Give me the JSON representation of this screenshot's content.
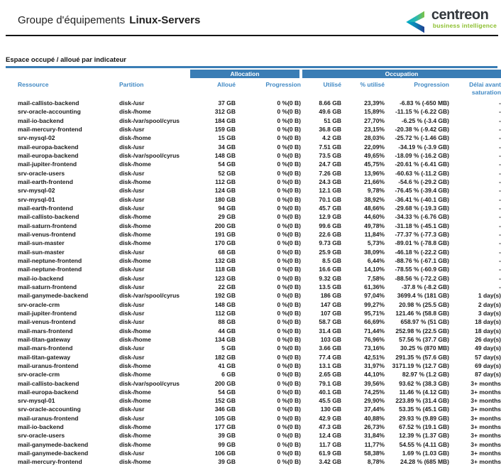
{
  "header": {
    "title_prefix": "Groupe d'équipements",
    "title_group": "Linux-Servers",
    "logo": {
      "brand": "centreon",
      "subtitle": "business intelligence"
    }
  },
  "section": {
    "title": "Espace occupé / alloué par indicateur"
  },
  "colors": {
    "header_bar_blue": "#3a7db5",
    "column_header_blue": "#4189c4",
    "logo_green": "#8cbf2f",
    "logo_teal": "#00aec7",
    "logo_navy": "#1f3f8f",
    "body_text": "#1b1b1b"
  },
  "table": {
    "group_headers": {
      "allocation": "Allocation",
      "occupation": "Occupation"
    },
    "columns": [
      "Ressource",
      "Partition",
      "Alloué",
      "Progression",
      "Utilisé",
      "% utilisé",
      "Progression",
      "Délai avant saturation"
    ],
    "column_keys": [
      "resource",
      "partition",
      "allocated",
      "allocation-progression",
      "used",
      "used-percent",
      "occupation-progression",
      "saturation-delay"
    ],
    "rows": [
      [
        "mail-callisto-backend",
        "disk-/usr",
        "37 GB",
        "0 %(0 B)",
        "8.66 GB",
        "23,39%",
        "-6.83 % (-650 MB)",
        "-"
      ],
      [
        "srv-oracle-accounting",
        "disk-/home",
        "312 GB",
        "0 %(0 B)",
        "49.6 GB",
        "15,89%",
        "-11.15 % (-6.22 GB)",
        "-"
      ],
      [
        "mail-io-backend",
        "disk-/var/spool/cyrus",
        "184 GB",
        "0 %(0 B)",
        "51 GB",
        "27,70%",
        "-6.25 % (-3.4 GB)",
        "-"
      ],
      [
        "mail-mercury-frontend",
        "disk-/usr",
        "159 GB",
        "0 %(0 B)",
        "36.8 GB",
        "23,15%",
        "-20.38 % (-9.42 GB)",
        "-"
      ],
      [
        "srv-mysql-02",
        "disk-/home",
        "15 GB",
        "0 %(0 B)",
        "4.2 GB",
        "28,03%",
        "-25.72 % (-1.46 GB)",
        "-"
      ],
      [
        "mail-europa-backend",
        "disk-/usr",
        "34 GB",
        "0 %(0 B)",
        "7.51 GB",
        "22,09%",
        "-34.19 % (-3.9 GB)",
        "-"
      ],
      [
        "mail-europa-backend",
        "disk-/var/spool/cyrus",
        "148 GB",
        "0 %(0 B)",
        "73.5 GB",
        "49,65%",
        "-18.09 % (-16.2 GB)",
        "-"
      ],
      [
        "mail-jupiter-frontend",
        "disk-/home",
        "54 GB",
        "0 %(0 B)",
        "24.7 GB",
        "45,75%",
        "-20.61 % (-6.41 GB)",
        "-"
      ],
      [
        "srv-oracle-users",
        "disk-/usr",
        "52 GB",
        "0 %(0 B)",
        "7.26 GB",
        "13,96%",
        "-60.63 % (-11.2 GB)",
        "-"
      ],
      [
        "mail-earth-frontend",
        "disk-/home",
        "112 GB",
        "0 %(0 B)",
        "24.3 GB",
        "21,66%",
        "-54.6 % (-29.2 GB)",
        "-"
      ],
      [
        "srv-mysql-02",
        "disk-/usr",
        "124 GB",
        "0 %(0 B)",
        "12.1 GB",
        "9,78%",
        "-76.45 % (-39.4 GB)",
        "-"
      ],
      [
        "srv-mysql-01",
        "disk-/usr",
        "180 GB",
        "0 %(0 B)",
        "70.1 GB",
        "38,92%",
        "-36.41 % (-40.1 GB)",
        "-"
      ],
      [
        "mail-earth-frontend",
        "disk-/usr",
        "94 GB",
        "0 %(0 B)",
        "45.7 GB",
        "48,66%",
        "-29.68 % (-19.3 GB)",
        "-"
      ],
      [
        "mail-callisto-backend",
        "disk-/home",
        "29 GB",
        "0 %(0 B)",
        "12.9 GB",
        "44,60%",
        "-34.33 % (-6.76 GB)",
        "-"
      ],
      [
        "mail-saturn-frontend",
        "disk-/home",
        "200 GB",
        "0 %(0 B)",
        "99.6 GB",
        "49,78%",
        "-31.18 % (-45.1 GB)",
        "-"
      ],
      [
        "mail-venus-frontend",
        "disk-/home",
        "191 GB",
        "0 %(0 B)",
        "22.6 GB",
        "11,84%",
        "-77.37 % (-77.3 GB)",
        "-"
      ],
      [
        "mail-sun-master",
        "disk-/home",
        "170 GB",
        "0 %(0 B)",
        "9.73 GB",
        "5,73%",
        "-89.01 % (-78.8 GB)",
        "-"
      ],
      [
        "mail-sun-master",
        "disk-/usr",
        "68 GB",
        "0 %(0 B)",
        "25.9 GB",
        "38,09%",
        "-46.18 % (-22.2 GB)",
        "-"
      ],
      [
        "mail-neptune-frontend",
        "disk-/home",
        "132 GB",
        "0 %(0 B)",
        "8.5 GB",
        "6,44%",
        "-88.76 % (-67.1 GB)",
        "-"
      ],
      [
        "mail-neptune-frontend",
        "disk-/usr",
        "118 GB",
        "0 %(0 B)",
        "16.6 GB",
        "14,10%",
        "-78.55 % (-60.9 GB)",
        "-"
      ],
      [
        "mail-io-backend",
        "disk-/usr",
        "123 GB",
        "0 %(0 B)",
        "9.32 GB",
        "7,58%",
        "-88.56 % (-72.2 GB)",
        "-"
      ],
      [
        "mail-saturn-frontend",
        "disk-/usr",
        "22 GB",
        "0 %(0 B)",
        "13.5 GB",
        "61,36%",
        "-37.8 % (-8.2 GB)",
        "-"
      ],
      [
        "mail-ganymede-backend",
        "disk-/var/spool/cyrus",
        "192 GB",
        "0 %(0 B)",
        "186 GB",
        "97,04%",
        "3699.4 % (181 GB)",
        "1 day(s)"
      ],
      [
        "srv-oracle-crm",
        "disk-/usr",
        "148 GB",
        "0 %(0 B)",
        "147 GB",
        "99,27%",
        "20.98 % (25.5 GB)",
        "2 day(s)"
      ],
      [
        "mail-jupiter-frontend",
        "disk-/usr",
        "112 GB",
        "0 %(0 B)",
        "107 GB",
        "95,71%",
        "121.46 % (58.8 GB)",
        "3 day(s)"
      ],
      [
        "mail-venus-frontend",
        "disk-/usr",
        "88 GB",
        "0 %(0 B)",
        "58.7 GB",
        "66,69%",
        "658.97 % (51 GB)",
        "18 day(s)"
      ],
      [
        "mail-mars-frontend",
        "disk-/home",
        "44 GB",
        "0 %(0 B)",
        "31.4 GB",
        "71,44%",
        "252.98 % (22.5 GB)",
        "18 day(s)"
      ],
      [
        "mail-titan-gateway",
        "disk-/home",
        "134 GB",
        "0 %(0 B)",
        "103 GB",
        "76,96%",
        "57.56 % (37.7 GB)",
        "26 day(s)"
      ],
      [
        "mail-mars-frontend",
        "disk-/usr",
        "5 GB",
        "0 %(0 B)",
        "3.66 GB",
        "73,16%",
        "30.25 % (870 MB)",
        "49 day(s)"
      ],
      [
        "mail-titan-gateway",
        "disk-/usr",
        "182 GB",
        "0 %(0 B)",
        "77.4 GB",
        "42,51%",
        "291.35 % (57.6 GB)",
        "57 day(s)"
      ],
      [
        "mail-uranus-frontend",
        "disk-/home",
        "41 GB",
        "0 %(0 B)",
        "13.1 GB",
        "31,97%",
        "3171.19 % (12.7 GB)",
        "69 day(s)"
      ],
      [
        "srv-oracle-crm",
        "disk-/home",
        "6 GB",
        "0 %(0 B)",
        "2.65 GB",
        "44,10%",
        "82.97 % (1.2 GB)",
        "87 day(s)"
      ],
      [
        "mail-callisto-backend",
        "disk-/var/spool/cyrus",
        "200 GB",
        "0 %(0 B)",
        "79.1 GB",
        "39,56%",
        "93.62 % (38.3 GB)",
        "3+ months"
      ],
      [
        "mail-europa-backend",
        "disk-/home",
        "54 GB",
        "0 %(0 B)",
        "40.1 GB",
        "74,25%",
        "11.46 % (4.12 GB)",
        "3+ months"
      ],
      [
        "srv-mysql-01",
        "disk-/home",
        "152 GB",
        "0 %(0 B)",
        "45.5 GB",
        "29,90%",
        "223.89 % (31.4 GB)",
        "3+ months"
      ],
      [
        "srv-oracle-accounting",
        "disk-/usr",
        "346 GB",
        "0 %(0 B)",
        "130 GB",
        "37,44%",
        "53.35 % (45.1 GB)",
        "3+ months"
      ],
      [
        "mail-uranus-frontend",
        "disk-/usr",
        "105 GB",
        "0 %(0 B)",
        "42.9 GB",
        "40,88%",
        "29.93 % (9.89 GB)",
        "3+ months"
      ],
      [
        "mail-io-backend",
        "disk-/home",
        "177 GB",
        "0 %(0 B)",
        "47.3 GB",
        "26,73%",
        "67.52 % (19.1 GB)",
        "3+ months"
      ],
      [
        "srv-oracle-users",
        "disk-/home",
        "39 GB",
        "0 %(0 B)",
        "12.4 GB",
        "31,84%",
        "12.39 % (1.37 GB)",
        "3+ months"
      ],
      [
        "mail-ganymede-backend",
        "disk-/home",
        "99 GB",
        "0 %(0 B)",
        "11.7 GB",
        "11,77%",
        "54.55 % (4.11 GB)",
        "3+ months"
      ],
      [
        "mail-ganymede-backend",
        "disk-/usr",
        "106 GB",
        "0 %(0 B)",
        "61.9 GB",
        "58,38%",
        "1.69 % (1.03 GB)",
        "3+ months"
      ],
      [
        "mail-mercury-frontend",
        "disk-/home",
        "39 GB",
        "0 %(0 B)",
        "3.42 GB",
        "8,78%",
        "24.28 % (685 MB)",
        "3+ months"
      ]
    ]
  }
}
